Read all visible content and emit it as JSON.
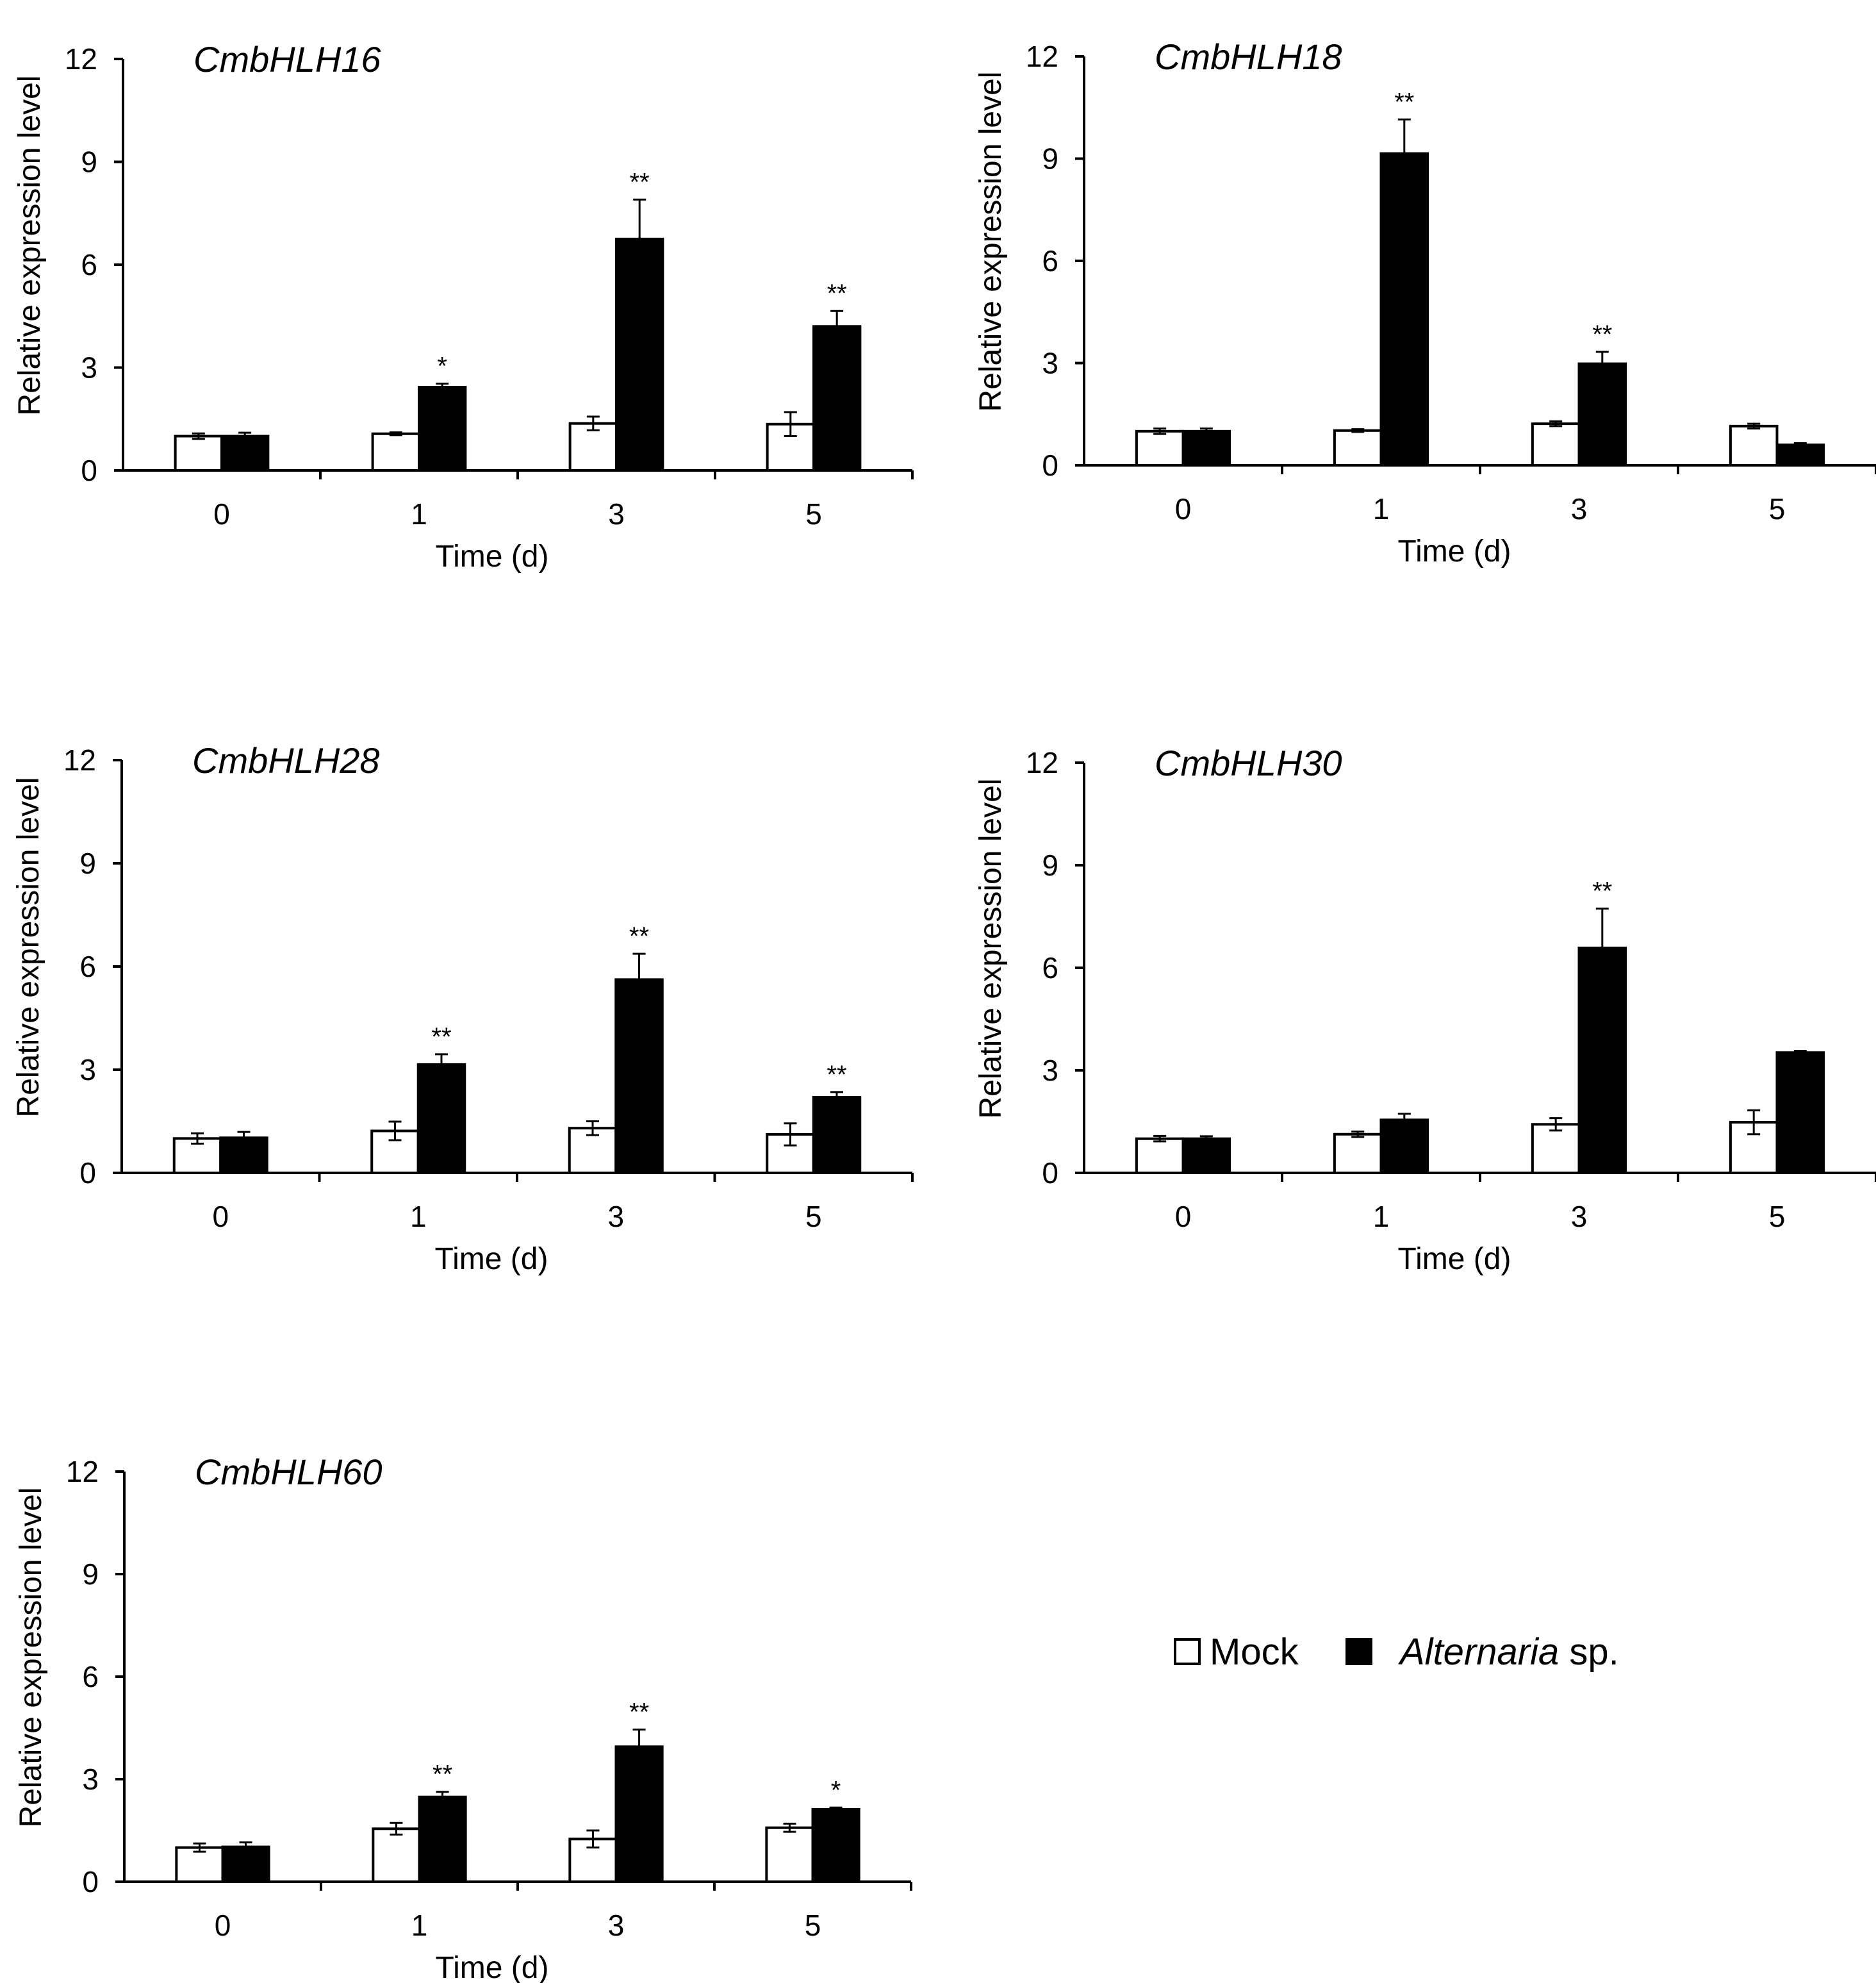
{
  "legend": {
    "mock_label": "Mock",
    "treatment_label_italic": "Alternaria",
    "treatment_label_suffix": " sp.",
    "mock_color": "#ffffff",
    "treatment_color": "#000000"
  },
  "chart_data": [
    {
      "type": "bar",
      "title": "CmbHLH16",
      "xlabel": "Time (d)",
      "ylabel": "Relative expression level",
      "ylim": [
        0,
        12
      ],
      "yticks": [
        0,
        3,
        6,
        9,
        12
      ],
      "categories": [
        "0",
        "1",
        "3",
        "5"
      ],
      "series": [
        {
          "name": "Mock",
          "values": [
            1.0,
            1.07,
            1.37,
            1.35
          ],
          "errors": [
            0.08,
            0.04,
            0.2,
            0.35
          ]
        },
        {
          "name": "Alternaria sp.",
          "values": [
            1.0,
            2.43,
            6.75,
            4.2
          ],
          "errors": [
            0.1,
            0.1,
            1.15,
            0.45
          ]
        }
      ],
      "significance": [
        "",
        "*",
        "**",
        "**"
      ]
    },
    {
      "type": "bar",
      "title": "CmbHLH18",
      "xlabel": "Time (d)",
      "ylabel": "Relative expression level",
      "ylim": [
        0,
        12
      ],
      "yticks": [
        0,
        3,
        6,
        9,
        12
      ],
      "categories": [
        "0",
        "1",
        "3",
        "5"
      ],
      "series": [
        {
          "name": "Mock",
          "values": [
            1.0,
            1.02,
            1.22,
            1.15
          ],
          "errors": [
            0.08,
            0.04,
            0.07,
            0.07
          ]
        },
        {
          "name": "Alternaria sp.",
          "values": [
            1.0,
            9.15,
            2.98,
            0.6
          ],
          "errors": [
            0.08,
            1.0,
            0.35,
            0.05
          ]
        }
      ],
      "significance": [
        "",
        "**",
        "**",
        ""
      ]
    },
    {
      "type": "bar",
      "title": "CmbHLH28",
      "xlabel": "Time (d)",
      "ylabel": "Relative expression level",
      "ylim": [
        0,
        12
      ],
      "yticks": [
        0,
        3,
        6,
        9,
        12
      ],
      "categories": [
        "0",
        "1",
        "3",
        "5"
      ],
      "series": [
        {
          "name": "Mock",
          "values": [
            1.0,
            1.22,
            1.3,
            1.12
          ],
          "errors": [
            0.15,
            0.27,
            0.2,
            0.32
          ]
        },
        {
          "name": "Alternaria sp.",
          "values": [
            1.02,
            3.15,
            5.62,
            2.2
          ],
          "errors": [
            0.17,
            0.3,
            0.75,
            0.15
          ]
        }
      ],
      "significance": [
        "",
        "**",
        "**",
        "**"
      ]
    },
    {
      "type": "bar",
      "title": "CmbHLH30",
      "xlabel": "Time (d)",
      "ylabel": "Relative expression level",
      "ylim": [
        0,
        12
      ],
      "yticks": [
        0,
        3,
        6,
        9,
        12
      ],
      "categories": [
        "0",
        "1",
        "3",
        "5"
      ],
      "series": [
        {
          "name": "Mock",
          "values": [
            1.0,
            1.13,
            1.42,
            1.48
          ],
          "errors": [
            0.08,
            0.08,
            0.18,
            0.35
          ]
        },
        {
          "name": "Alternaria sp.",
          "values": [
            1.0,
            1.55,
            6.58,
            3.52
          ],
          "errors": [
            0.07,
            0.18,
            1.15,
            0.05
          ]
        }
      ],
      "significance": [
        "",
        "",
        "**",
        ""
      ]
    },
    {
      "type": "bar",
      "title": "CmbHLH60",
      "xlabel": "Time (d)",
      "ylabel": "Relative expression level",
      "ylim": [
        0,
        12
      ],
      "yticks": [
        0,
        3,
        6,
        9,
        12
      ],
      "categories": [
        "0",
        "1",
        "3",
        "5"
      ],
      "series": [
        {
          "name": "Mock",
          "values": [
            1.0,
            1.55,
            1.25,
            1.58
          ],
          "errors": [
            0.12,
            0.17,
            0.25,
            0.12
          ]
        },
        {
          "name": "Alternaria sp.",
          "values": [
            1.02,
            2.48,
            3.95,
            2.12
          ],
          "errors": [
            0.13,
            0.15,
            0.5,
            0.05
          ]
        }
      ],
      "significance": [
        "",
        "**",
        "**",
        "*"
      ]
    }
  ]
}
